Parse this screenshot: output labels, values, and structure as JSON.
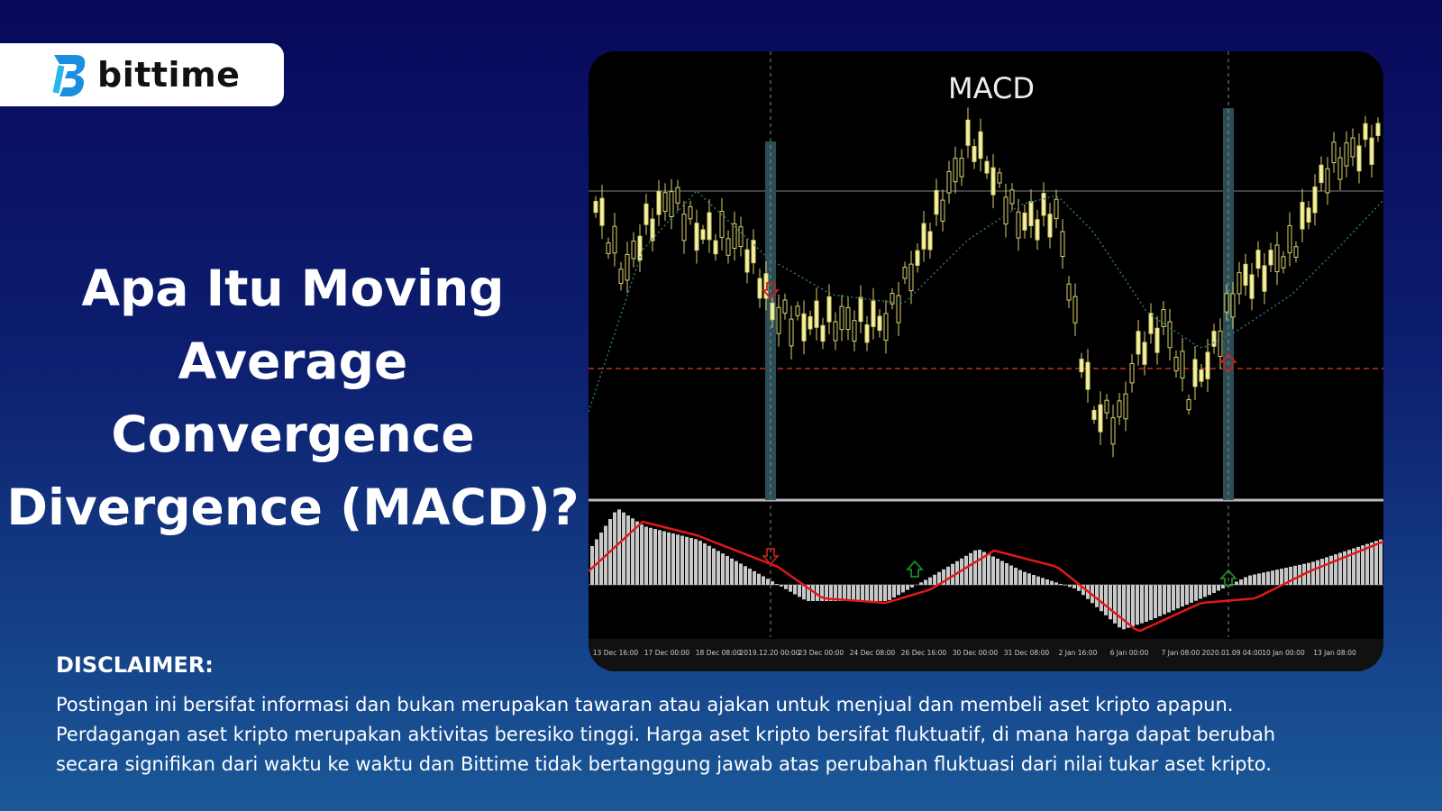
{
  "logo": {
    "name": "bittime"
  },
  "headline": {
    "lines": [
      "Apa Itu Moving",
      "Average",
      "Convergence",
      "Divergence (MACD)?"
    ]
  },
  "chart_image": {
    "title": "MACD",
    "time_labels": [
      "13 Dec 16:00",
      "17 Dec 00:00",
      "18 Dec 08:00",
      "2019.12.20 00:00",
      "23 Dec 00:00",
      "24 Dec 08:00",
      "26 Dec 16:00",
      "30 Dec 00:00",
      "31 Dec 08:00",
      "2 Jan 16:00",
      "6 Jan 00:00",
      "7 Jan 08:00",
      "2020.01.09 04:00",
      "10 Jan 00:00",
      "13 Jan 08:00"
    ]
  },
  "disclaimer": {
    "heading": "DISCLAIMER:",
    "lines": [
      "Postingan ini bersifat informasi dan bukan merupakan tawaran atau ajakan untuk menjual dan membeli aset kripto apapun.",
      "Perdagangan aset kripto merupakan aktivitas beresiko tinggi. Harga aset kripto bersifat fluktuatif, di mana harga dapat berubah",
      "secara signifikan dari waktu ke waktu dan Bittime tidak bertanggung jawab atas perubahan fluktuasi dari nilai tukar aset kripto."
    ]
  }
}
